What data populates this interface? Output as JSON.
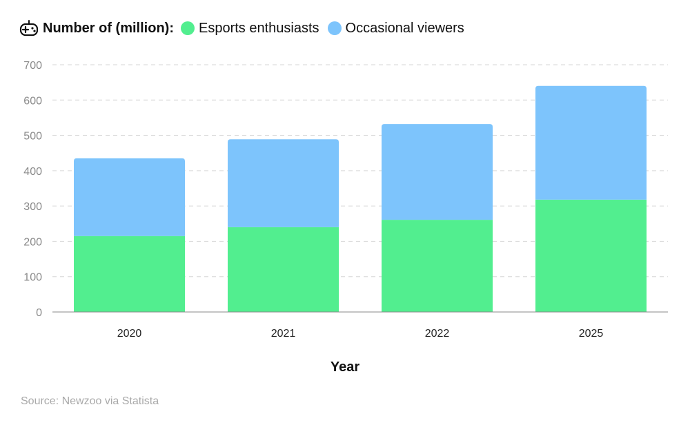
{
  "legend": {
    "title": "Number of (million):",
    "icon": "gamepad-icon"
  },
  "chart_data": {
    "type": "bar",
    "stacked": true,
    "categories": [
      "2020",
      "2021",
      "2022",
      "2025"
    ],
    "series": [
      {
        "name": "Esports enthusiasts",
        "values": [
          215,
          240,
          261,
          318
        ],
        "color": "#52ee8f"
      },
      {
        "name": "Occasional viewers",
        "values": [
          220,
          249,
          271,
          322
        ],
        "color": "#7dc4fc"
      }
    ],
    "xlabel": "Year",
    "ylabel": "",
    "ylim": [
      0,
      700
    ],
    "yticks": [
      0,
      100,
      200,
      300,
      400,
      500,
      600,
      700
    ],
    "grid": true,
    "legend_position": "top-left"
  },
  "source": "Source: Newzoo via Statista"
}
